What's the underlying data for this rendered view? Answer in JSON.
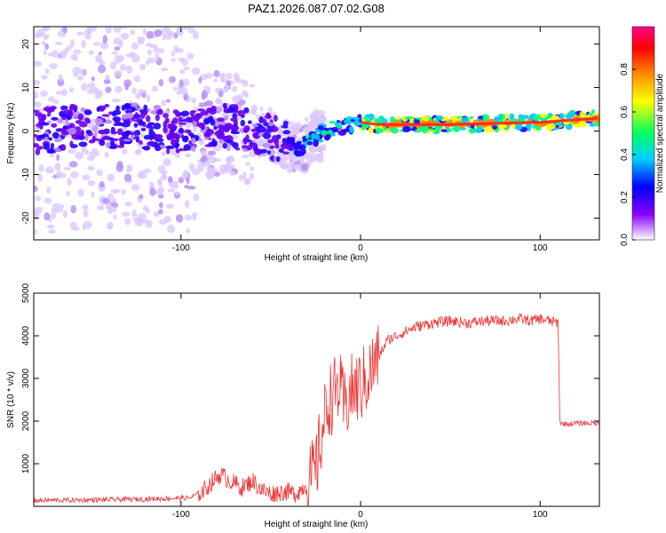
{
  "title": "PAZ1.2026.087.07.02.G08",
  "chart_data": [
    {
      "type": "heatmap",
      "xlabel": "Height of straight line (km)",
      "ylabel": "Frequency (Hz)",
      "xlim": [
        -182,
        133
      ],
      "ylim": [
        -25,
        24
      ],
      "xticks": [
        -100,
        0,
        100
      ],
      "xtick_labels": [
        "-100",
        "0",
        "100"
      ],
      "yticks": [
        -20,
        -10,
        0,
        10,
        20
      ],
      "ytick_labels": [
        "-20",
        "-10",
        "0",
        "10",
        "20"
      ],
      "ridge_x": [
        -182,
        -150,
        -120,
        -100,
        -80,
        -60,
        -45,
        -35,
        -30,
        -20,
        -10,
        0,
        10,
        50,
        100,
        133
      ],
      "ridge_y": [
        0,
        1,
        1,
        0,
        2,
        0,
        -2,
        -4,
        -3,
        0,
        1,
        2,
        1.5,
        1.5,
        2,
        3
      ],
      "colorbar": {
        "label": "Normalized spectral amplitude",
        "range": [
          0,
          1
        ],
        "ticks": [
          0.0,
          0.2,
          0.4,
          0.6,
          0.8
        ],
        "tick_labels": [
          "0.0",
          "0.2",
          "0.4",
          "0.6",
          "0.8"
        ]
      }
    },
    {
      "type": "line",
      "xlabel": "Height of straight line (km)",
      "ylabel": "SNR (10 * v/v)",
      "xlim": [
        -182,
        133
      ],
      "ylim": [
        0,
        5000
      ],
      "xticks": [
        -100,
        0,
        100
      ],
      "xtick_labels": [
        "-100",
        "0",
        "100"
      ],
      "yticks": [
        1000,
        2000,
        3000,
        4000,
        5000
      ],
      "ytick_labels": [
        "1000",
        "2000",
        "3000",
        "4000",
        "5000"
      ],
      "color": "#ee3333",
      "x": [
        -182,
        -150,
        -120,
        -95,
        -88,
        -82,
        -78,
        -72,
        -66,
        -60,
        -55,
        -50,
        -42,
        -36,
        -30,
        -25,
        -22,
        -18,
        -15,
        -12,
        -9,
        -5,
        0,
        5,
        10,
        15,
        20,
        25,
        30,
        40,
        50,
        60,
        70,
        80,
        88,
        95,
        100,
        105,
        110,
        111,
        115,
        120,
        125,
        133
      ],
      "y": [
        140,
        150,
        170,
        200,
        350,
        600,
        750,
        580,
        440,
        600,
        380,
        300,
        350,
        300,
        500,
        800,
        1600,
        2500,
        2600,
        2800,
        2300,
        2700,
        2800,
        3100,
        3500,
        3900,
        4000,
        4100,
        4200,
        4300,
        4350,
        4300,
        4350,
        4350,
        4400,
        4350,
        4400,
        4350,
        4300,
        1950,
        1930,
        1950,
        1950,
        1950
      ]
    }
  ]
}
